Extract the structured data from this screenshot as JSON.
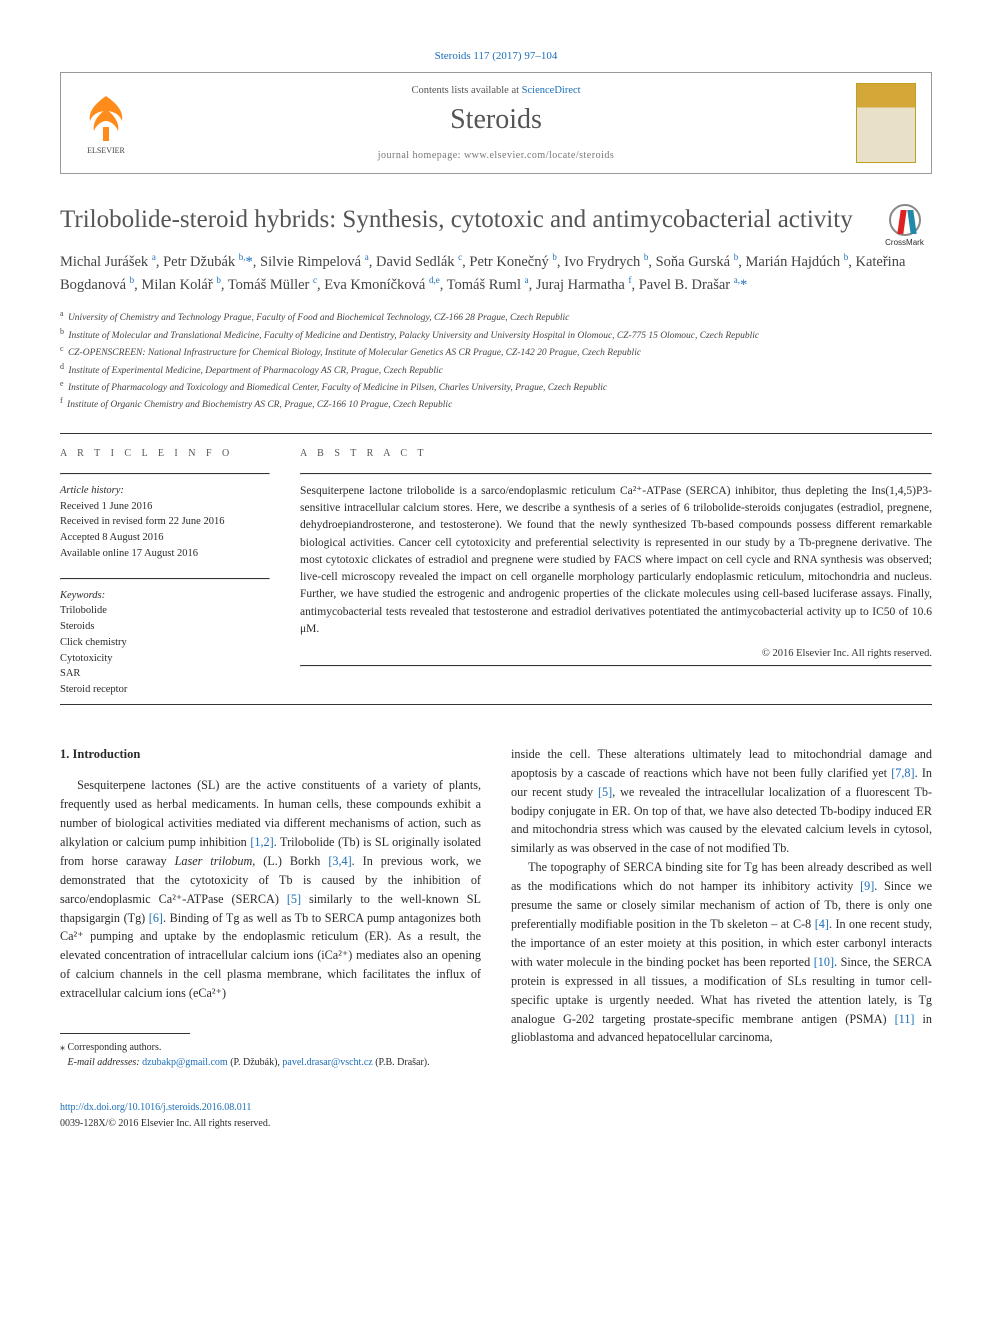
{
  "citation": "Steroids 117 (2017) 97–104",
  "header": {
    "contents_prefix": "Contents lists available at ",
    "contents_link": "ScienceDirect",
    "journal": "Steroids",
    "homepage_label": "journal homepage: ",
    "homepage_url": "www.elsevier.com/locate/steroids"
  },
  "crossmark_label": "CrossMark",
  "title": "Trilobolide-steroid hybrids: Synthesis, cytotoxic and antimycobacterial activity",
  "authors_html": "Michal Jurášek <sup>a</sup>, Petr Džubák <sup>b,</sup><span class='ast'>*</span>, Silvie Rimpelová <sup>a</sup>, David Sedlák <sup>c</sup>, Petr Konečný <sup>b</sup>, Ivo Frydrych <sup>b</sup>, Soňa Gurská <sup>b</sup>, Marián Hajdúch <sup>b</sup>, Kateřina Bogdanová <sup>b</sup>, Milan Kolář <sup>b</sup>, Tomáš Müller <sup>c</sup>, Eva Kmoníčková <sup>d,e</sup>, Tomáš Ruml <sup>a</sup>, Juraj Harmatha <sup>f</sup>, Pavel B. Drašar <sup>a,</sup><span class='ast'>*</span>",
  "affiliations": [
    {
      "k": "a",
      "t": "University of Chemistry and Technology Prague, Faculty of Food and Biochemical Technology, CZ-166 28 Prague, Czech Republic"
    },
    {
      "k": "b",
      "t": "Institute of Molecular and Translational Medicine, Faculty of Medicine and Dentistry, Palacky University and University Hospital in Olomouc, CZ-775 15 Olomouc, Czech Republic"
    },
    {
      "k": "c",
      "t": "CZ-OPENSCREEN: National Infrastructure for Chemical Biology, Institute of Molecular Genetics AS CR Prague, CZ-142 20 Prague, Czech Republic"
    },
    {
      "k": "d",
      "t": "Institute of Experimental Medicine, Department of Pharmacology AS CR, Prague, Czech Republic"
    },
    {
      "k": "e",
      "t": "Institute of Pharmacology and Toxicology and Biomedical Center, Faculty of Medicine in Pilsen, Charles University, Prague, Czech Republic"
    },
    {
      "k": "f",
      "t": "Institute of Organic Chemistry and Biochemistry AS CR, Prague, CZ-166 10 Prague, Czech Republic"
    }
  ],
  "article_info": {
    "heading": "A R T I C L E   I N F O",
    "history_heading": "Article history:",
    "history": [
      "Received 1 June 2016",
      "Received in revised form 22 June 2016",
      "Accepted 8 August 2016",
      "Available online 17 August 2016"
    ],
    "keywords_heading": "Keywords:",
    "keywords": [
      "Trilobolide",
      "Steroids",
      "Click chemistry",
      "Cytotoxicity",
      "SAR",
      "Steroid receptor"
    ]
  },
  "abstract": {
    "heading": "A B S T R A C T",
    "text": "Sesquiterpene lactone trilobolide is a sarco/endoplasmic reticulum Ca²⁺-ATPase (SERCA) inhibitor, thus depleting the Ins(1,4,5)P3-sensitive intracellular calcium stores. Here, we describe a synthesis of a series of 6 trilobolide-steroids conjugates (estradiol, pregnene, dehydroepiandrosterone, and testosterone). We found that the newly synthesized Tb-based compounds possess different remarkable biological activities. Cancer cell cytotoxicity and preferential selectivity is represented in our study by a Tb-pregnene derivative. The most cytotoxic clickates of estradiol and pregnene were studied by FACS where impact on cell cycle and RNA synthesis was observed; live-cell microscopy revealed the impact on cell organelle morphology particularly endoplasmic reticulum, mitochondria and nucleus. Further, we have studied the estrogenic and androgenic properties of the clickate molecules using cell-based luciferase assays. Finally, antimycobacterial tests revealed that testosterone and estradiol derivatives potentiated the antimycobacterial activity up to IC50 of 10.6 μM.",
    "copyright": "© 2016 Elsevier Inc. All rights reserved."
  },
  "body": {
    "section_heading": "1. Introduction",
    "col1": "Sesquiterpene lactones (SL) are the active constituents of a variety of plants, frequently used as herbal medicaments. In human cells, these compounds exhibit a number of biological activities mediated via different mechanisms of action, such as alkylation or calcium pump inhibition [1,2]. Trilobolide (Tb) is SL originally isolated from horse caraway Laser trilobum, (L.) Borkh [3,4]. In previous work, we demonstrated that the cytotoxicity of Tb is caused by the inhibition of sarco/endoplasmic Ca²⁺-ATPase (SERCA) [5] similarly to the well-known SL thapsigargin (Tg) [6]. Binding of Tg as well as Tb to SERCA pump antagonizes both Ca²⁺ pumping and uptake by the endoplasmic reticulum (ER). As a result, the elevated concentration of intracellular calcium ions (iCa²⁺) mediates also an opening of calcium channels in the cell plasma membrane, which facilitates the influx of extracellular calcium ions (eCa²⁺)",
    "col2": "inside the cell. These alterations ultimately lead to mitochondrial damage and apoptosis by a cascade of reactions which have not been fully clarified yet [7,8]. In our recent study [5], we revealed the intracellular localization of a fluorescent Tb-bodipy conjugate in ER. On top of that, we have also detected Tb-bodipy induced ER and mitochondria stress which was caused by the elevated calcium levels in cytosol, similarly as was observed in the case of not modified Tb.\n\nThe topography of SERCA binding site for Tg has been already described as well as the modifications which do not hamper its inhibitory activity [9]. Since we presume the same or closely similar mechanism of action of Tb, there is only one preferentially modifiable position in the Tb skeleton – at C-8 [4]. In one recent study, the importance of an ester moiety at this position, in which ester carbonyl interacts with water molecule in the binding pocket has been reported [10]. Since, the SERCA protein is expressed in all tissues, a modification of SLs resulting in tumor cell-specific uptake is urgently needed. What has riveted the attention lately, is Tg analogue G-202 targeting prostate-specific membrane antigen (PSMA) [11] in glioblastoma and advanced hepatocellular carcinoma,"
  },
  "refs_inline": {
    "1": "[1,2]",
    "2": "[3,4]",
    "3": "[5]",
    "4": "[6]",
    "5": "[7,8]",
    "6": "[5]",
    "7": "[9]",
    "8": "[4]",
    "9": "[10]",
    "10": "[11]"
  },
  "footnotes": {
    "corresp": "Corresponding authors.",
    "emails_label": "E-mail addresses:",
    "email1": "dzubakp@gmail.com",
    "email1_who": "(P. Džubák),",
    "email2": "pavel.drasar@vscht.cz",
    "email2_who": "(P.B. Drašar)."
  },
  "doi": {
    "url": "http://dx.doi.org/10.1016/j.steroids.2016.08.011",
    "line2": "0039-128X/© 2016 Elsevier Inc. All rights reserved."
  },
  "colors": {
    "link": "#1a6eb8",
    "text": "#2a2a2a",
    "heading_gray": "#555555",
    "elsevier_orange": "#ff8c1a"
  }
}
